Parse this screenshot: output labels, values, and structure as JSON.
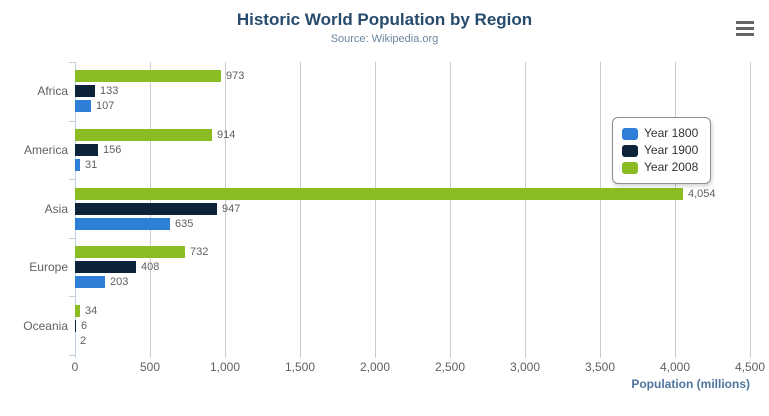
{
  "chart_data": {
    "type": "bar",
    "title": "Historic World Population by Region",
    "subtitle": "Source: Wikipedia.org",
    "categories": [
      "Africa",
      "America",
      "Asia",
      "Europe",
      "Oceania"
    ],
    "series": [
      {
        "name": "Year 1800",
        "color": "#2f7ed8",
        "values": [
          107,
          31,
          635,
          203,
          2
        ]
      },
      {
        "name": "Year 1900",
        "color": "#0d233a",
        "values": [
          133,
          156,
          947,
          408,
          6
        ]
      },
      {
        "name": "Year 2008",
        "color": "#8bbc21",
        "values": [
          973,
          914,
          4054,
          732,
          34
        ]
      }
    ],
    "bar_order_top_to_bottom": [
      "Year 2008",
      "Year 1900",
      "Year 1800"
    ],
    "xlabel": "Population (millions)",
    "ylabel": "",
    "xlim": [
      0,
      4500
    ],
    "x_ticks": [
      0,
      500,
      1000,
      1500,
      2000,
      2500,
      3000,
      3500,
      4000,
      4500
    ],
    "x_tick_labels": [
      "0",
      "500",
      "1,000",
      "1,500",
      "2,000",
      "2,500",
      "3,000",
      "3,500",
      "4,000",
      "4,500"
    ],
    "grid": true,
    "legend_position": "right",
    "data_labels": true
  },
  "colors": {
    "title": "#274b6d",
    "subtitle": "#6d869f",
    "axis_title": "#4d759e",
    "labels": "#606060",
    "gridline": "#cccccc",
    "category_axis_line": "#c0d0e0",
    "menu_icon": "#666666"
  },
  "menu": {
    "icon": "hamburger-context-menu"
  }
}
